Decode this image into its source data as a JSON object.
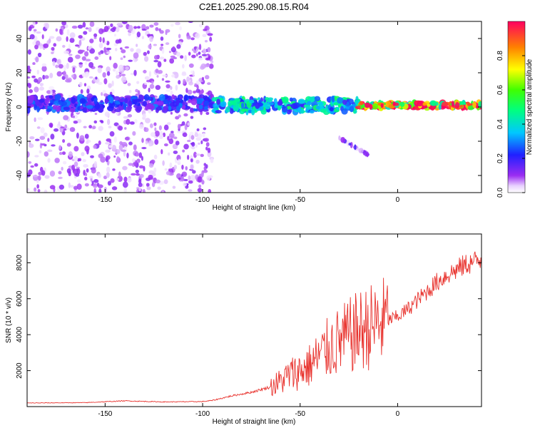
{
  "title": "C2E1.2025.290.08.15.R04",
  "colors": {
    "trace": "#e8312c",
    "frame": "#000000",
    "background": "#ffffff"
  },
  "chart_data": [
    {
      "type": "heatmap",
      "panel": "top",
      "title": "C2E1.2025.290.08.15.R04",
      "xlabel": "Height of straight line (km)",
      "ylabel": "Frequency (Hz)",
      "xlim": [
        -190,
        43
      ],
      "ylim": [
        -50,
        50
      ],
      "xticks": [
        -150,
        -100,
        -50,
        0
      ],
      "yticks": [
        -40,
        -20,
        0,
        20,
        40
      ],
      "xtick_labels": [
        "-150",
        "-100",
        "-50",
        "0"
      ],
      "ytick_labels": [
        "-40",
        "-20",
        "0",
        "20",
        "40"
      ],
      "grid": false,
      "colorbar": {
        "label": "Normalized spectral amplitude",
        "range": [
          0,
          1
        ],
        "ticks": [
          0.0,
          0.2,
          0.4,
          0.6,
          0.8
        ],
        "tick_labels": [
          "0.0",
          "0.2",
          "0.4",
          "0.6",
          "0.8"
        ],
        "colormap": "rainbow (magenta-blue-cyan-green-yellow-red)"
      },
      "features": [
        {
          "desc": "diffuse scatter",
          "x_range": [
            -190,
            -95
          ],
          "freq_range": [
            -50,
            50
          ],
          "amplitude": 0.05
        },
        {
          "desc": "carrier band",
          "x_range": [
            -190,
            -95
          ],
          "freq": 2,
          "amplitude": 0.2
        },
        {
          "desc": "carrier band",
          "x_range": [
            -95,
            -20
          ],
          "freq": 1,
          "amplitude": 0.35
        },
        {
          "desc": "carrier band strong",
          "x_range": [
            -20,
            43
          ],
          "freq": 1,
          "amplitude": 0.8
        },
        {
          "desc": "weak streak",
          "x_range": [
            -30,
            -15
          ],
          "freq_range": [
            -18,
            -28
          ],
          "amplitude": 0.08
        }
      ]
    },
    {
      "type": "line",
      "panel": "bottom",
      "xlabel": "Height of straight line (km)",
      "ylabel": "SNR (10 * v/v)",
      "xlim": [
        -190,
        43
      ],
      "ylim": [
        0,
        9600
      ],
      "xticks": [
        -150,
        -100,
        -50,
        0
      ],
      "yticks": [
        2000,
        4000,
        6000,
        8000
      ],
      "xtick_labels": [
        "-150",
        "-100",
        "-50",
        "0"
      ],
      "ytick_labels": [
        "2000",
        "4000",
        "6000",
        "8000"
      ],
      "grid": false,
      "series": [
        {
          "name": "SNR",
          "x": [
            -190,
            -160,
            -140,
            -120,
            -100,
            -95,
            -85,
            -75,
            -65,
            -60,
            -55,
            -50,
            -45,
            -40,
            -35,
            -30,
            -25,
            -20,
            -15,
            -10,
            -5,
            0,
            5,
            10,
            15,
            20,
            25,
            30,
            35,
            43
          ],
          "y": [
            200,
            220,
            320,
            260,
            280,
            340,
            600,
            800,
            1100,
            1400,
            1800,
            2000,
            2300,
            2800,
            3300,
            3600,
            3900,
            4200,
            4400,
            4600,
            4800,
            5000,
            5400,
            5900,
            6400,
            6900,
            7300,
            7600,
            7900,
            8200
          ]
        }
      ]
    }
  ]
}
